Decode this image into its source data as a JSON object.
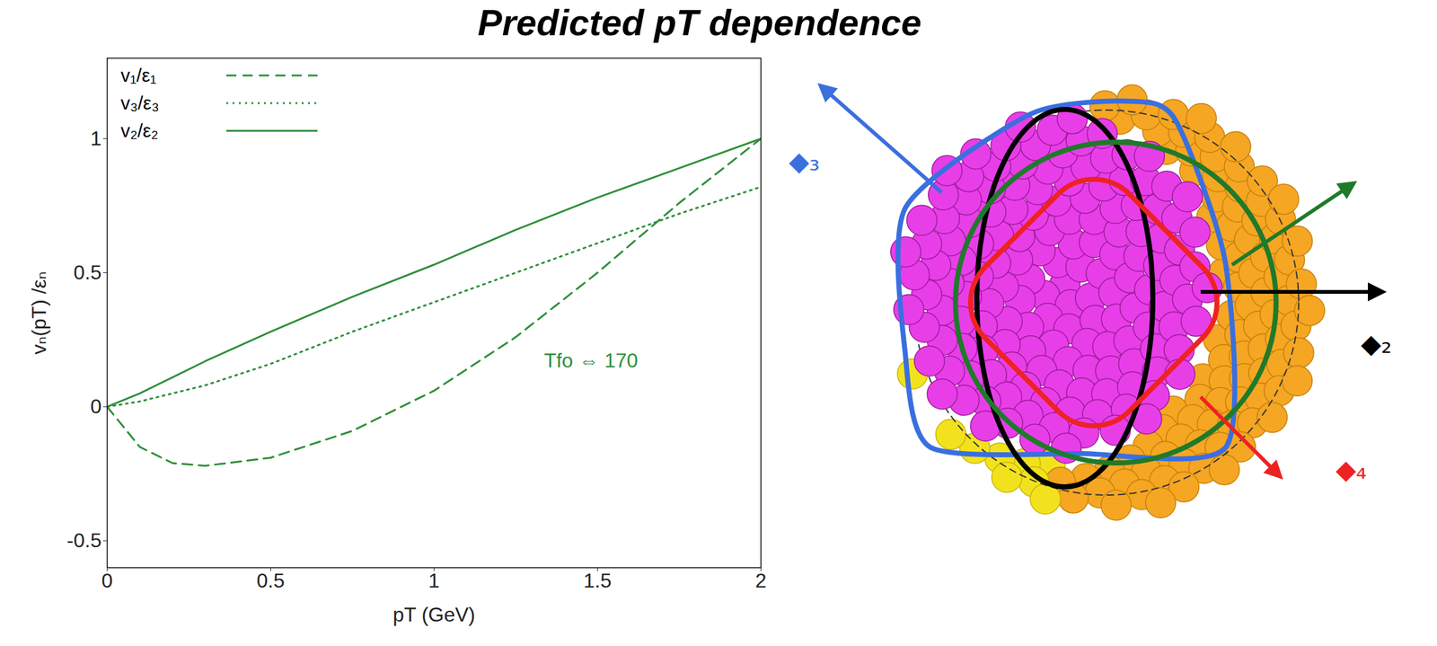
{
  "chart_data": {
    "type": "line",
    "title": "Predicted pT dependence",
    "x_label": "pT (GeV)",
    "y_label": "vₙ(pT) /εₙ",
    "x": [
      0,
      0.1,
      0.2,
      0.3,
      0.5,
      0.75,
      1,
      1.25,
      1.5,
      1.75,
      2
    ],
    "series": [
      {
        "name": "v₁/ε₁",
        "color": "#2f8f3a",
        "line_style": "dashed",
        "values": [
          0,
          -0.15,
          -0.21,
          -0.22,
          -0.19,
          -0.09,
          0.06,
          0.26,
          0.5,
          0.76,
          1.0
        ]
      },
      {
        "name": "v₃/ε₃",
        "color": "#2f8f3a",
        "line_style": "dotted",
        "values": [
          0,
          0.02,
          0.05,
          0.08,
          0.16,
          0.28,
          0.39,
          0.5,
          0.61,
          0.72,
          0.82
        ]
      },
      {
        "name": "v₂/ε₂",
        "color": "#2f8f3a",
        "line_style": "solid",
        "values": [
          0,
          0.05,
          0.11,
          0.17,
          0.28,
          0.41,
          0.53,
          0.66,
          0.78,
          0.89,
          1.0
        ]
      }
    ],
    "xlim": [
      0,
      2
    ],
    "xticks": [
      0,
      0.5,
      1,
      1.5,
      2
    ],
    "ylim": [
      -0.6,
      1.3
    ],
    "yticks": [
      -0.5,
      0,
      0.5,
      1
    ],
    "legend": "top-left",
    "grid": false,
    "color": "#2f8f3a",
    "annotations": [
      {
        "text": "Tfo ⇔ 170",
        "x": 1.48,
        "y": 0.17
      }
    ]
  },
  "diagram": {
    "labels": [
      "◆₃",
      "◆₂",
      "◆₄"
    ]
  }
}
